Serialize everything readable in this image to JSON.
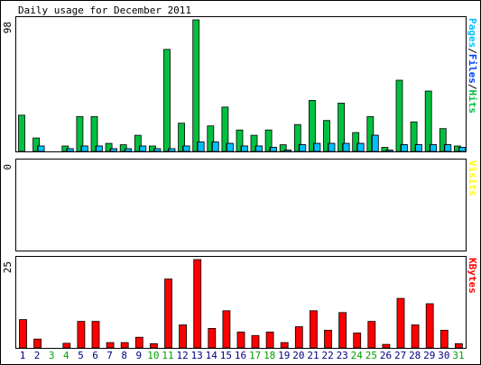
{
  "chart_data": {
    "type": "bar",
    "title": "Daily usage for December 2011",
    "categories": [
      "1",
      "2",
      "3",
      "4",
      "5",
      "6",
      "7",
      "8",
      "9",
      "10",
      "11",
      "12",
      "13",
      "14",
      "15",
      "16",
      "17",
      "18",
      "19",
      "20",
      "21",
      "22",
      "23",
      "24",
      "25",
      "26",
      "27",
      "28",
      "29",
      "30",
      "31"
    ],
    "weekend_days": [
      "3",
      "4",
      "10",
      "11",
      "17",
      "18",
      "24",
      "25",
      "31"
    ],
    "panels": [
      {
        "id": "hits",
        "max_label": "98",
        "ylim": [
          0,
          98
        ],
        "side_label_parts": [
          {
            "text": "Pages",
            "color": "#00c0ff"
          },
          {
            "text": "/",
            "color": "#000000"
          },
          {
            "text": "Files",
            "color": "#0040ff"
          },
          {
            "text": "/",
            "color": "#000000"
          },
          {
            "text": "Hits",
            "color": "#00c040"
          }
        ],
        "series": [
          {
            "name": "Hits",
            "color": "#00c040",
            "values": [
              27,
              10,
              0,
              4,
              26,
              26,
              6,
              5,
              12,
              4,
              76,
              21,
              98,
              19,
              33,
              16,
              12,
              16,
              5,
              20,
              38,
              23,
              36,
              14,
              26,
              3,
              53,
              22,
              45,
              17,
              4
            ]
          },
          {
            "name": "Files",
            "color": "#0040ff",
            "values": [
              0,
              4,
              0,
              2,
              4,
              4,
              2,
              2,
              4,
              2,
              2,
              4,
              7,
              7,
              6,
              4,
              4,
              3,
              1,
              5,
              6,
              6,
              6,
              6,
              12,
              1,
              5,
              5,
              5,
              5,
              3
            ]
          },
          {
            "name": "Pages",
            "color": "#00c0ff",
            "values": [
              0,
              4,
              0,
              2,
              4,
              4,
              2,
              2,
              4,
              2,
              2,
              4,
              7,
              7,
              6,
              4,
              4,
              3,
              1,
              5,
              6,
              6,
              6,
              6,
              12,
              1,
              5,
              5,
              5,
              5,
              3
            ]
          }
        ]
      },
      {
        "id": "visits",
        "max_label": "0",
        "ylim": [
          0,
          1
        ],
        "side_label_parts": [
          {
            "text": "Visits",
            "color": "#ffff00"
          }
        ],
        "series": [
          {
            "name": "Visits",
            "color": "#ffff00",
            "values": [
              0,
              0,
              0,
              0,
              0,
              0,
              0,
              0,
              0,
              0,
              0,
              0,
              0,
              0,
              0,
              0,
              0,
              0,
              0,
              0,
              0,
              0,
              0,
              0,
              0,
              0,
              0,
              0,
              0,
              0,
              0
            ]
          }
        ]
      },
      {
        "id": "kbytes",
        "max_label": "25",
        "ylim": [
          0,
          25
        ],
        "side_label_parts": [
          {
            "text": "KBytes",
            "color": "#ff0000"
          }
        ],
        "series": [
          {
            "name": "KBytes",
            "color": "#ff0000",
            "values": [
              8,
              2.5,
              0,
              1.3,
              7.5,
              7.5,
              1.5,
              1.5,
              3,
              1.2,
              19.5,
              6.5,
              25,
              5.5,
              10.5,
              4.5,
              3.5,
              4.5,
              1.5,
              6,
              10.5,
              5,
              10,
              4.2,
              7.5,
              1,
              14,
              6.5,
              12.5,
              5,
              1.2
            ]
          }
        ]
      }
    ],
    "colors": {
      "weekday_label": "#000080",
      "weekend_label": "#00a000",
      "frame": "#000000",
      "background": "#ffffff"
    }
  }
}
